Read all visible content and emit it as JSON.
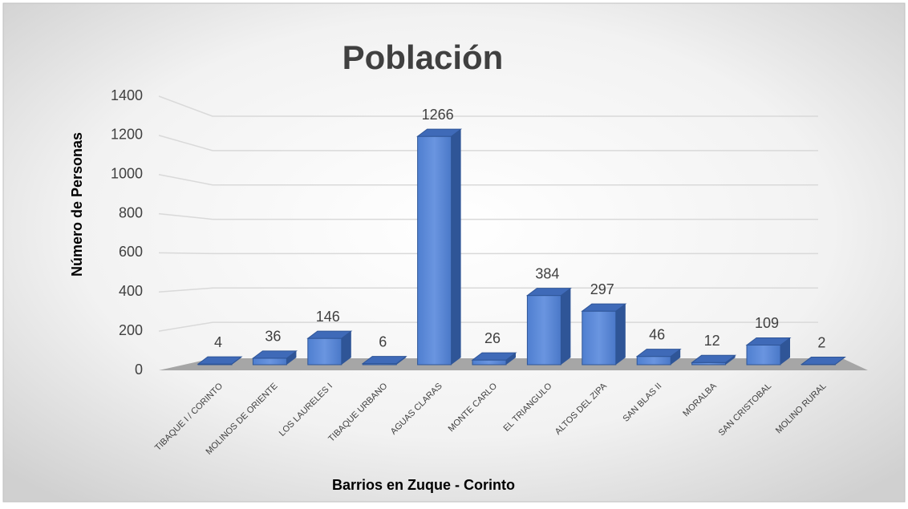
{
  "chart_data": {
    "type": "bar3d",
    "title": "Población",
    "y_label": "Número de Personas",
    "x_label": "Barrios en Zuque - Corinto",
    "categories": [
      "TIBAQUE I / CORINTO",
      "MOLINOS DE ORIENTE",
      "LOS LAURELES I",
      "TIBAQUE URBANO",
      "AGUAS CLARAS",
      "MONTE CARLO",
      "EL TRIANGULO",
      "ALTOS DEL ZIPA",
      "SAN BLAS II",
      "MORALBA",
      "SAN CRISTOBAL",
      "MOLINO RURAL"
    ],
    "values": [
      4,
      36,
      146,
      6,
      1266,
      26,
      384,
      297,
      46,
      12,
      109,
      2
    ],
    "color": "#4472c4",
    "ylim": [
      0,
      1400
    ],
    "yticks": [
      0,
      200,
      400,
      600,
      800,
      1000,
      1200,
      1400
    ],
    "grid": true
  }
}
